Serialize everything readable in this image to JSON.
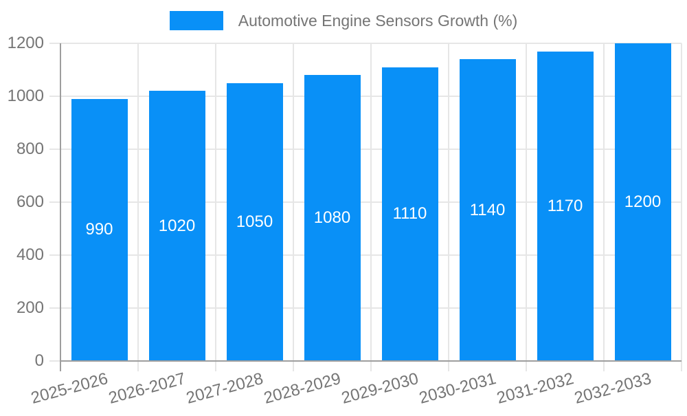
{
  "legend": {
    "label": "Automotive Engine Sensors Growth (%)",
    "swatch_color": "#0990f7"
  },
  "chart_data": {
    "type": "bar",
    "title": "Automotive Engine Sensors Growth (%)",
    "series_name": "Automotive Engine Sensors Growth (%)",
    "categories": [
      "2025-2026",
      "2026-2027",
      "2027-2028",
      "2028-2029",
      "2029-2030",
      "2030-2031",
      "2031-2032",
      "2032-2033"
    ],
    "values": [
      990,
      1020,
      1050,
      1080,
      1110,
      1140,
      1170,
      1200
    ],
    "bar_value_labels": [
      "990",
      "1020",
      "1050",
      "1080",
      "1110",
      "1140",
      "1170",
      "1200"
    ],
    "ytick_labels": [
      "0",
      "200",
      "400",
      "600",
      "800",
      "1000",
      "1200"
    ],
    "yticks": [
      0,
      200,
      400,
      600,
      800,
      1000,
      1200
    ],
    "ylim": [
      0,
      1200
    ],
    "xlabel": "",
    "ylabel": "",
    "grid": true,
    "legend_position": "top-center",
    "x_label_rotation_deg": -15,
    "colors": {
      "bar": "#0990f7",
      "bar_label_text": "#ffffff",
      "axis_text": "#757575",
      "grid_line": "#e6e6e6",
      "axis_line": "#9e9e9e",
      "background": "#ffffff"
    }
  }
}
